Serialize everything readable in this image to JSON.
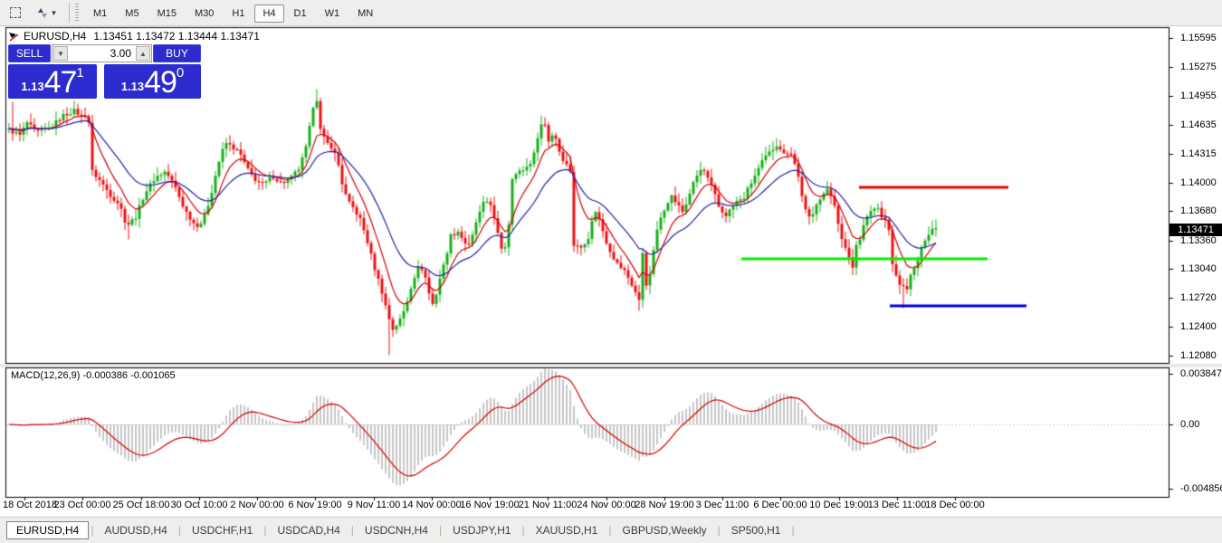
{
  "toolbar": {
    "timeframes": [
      "M1",
      "M5",
      "M15",
      "M30",
      "H1",
      "H4",
      "D1",
      "W1",
      "MN"
    ],
    "active_timeframe": "H4",
    "dropdown_caret": "▾"
  },
  "header": {
    "symbol": "EURUSD,H4",
    "ohlc": "1.13451 1.13472 1.13444 1.13471"
  },
  "trade_panel": {
    "sell_label": "SELL",
    "buy_label": "BUY",
    "volume": "3.00",
    "spin_down": "▼",
    "spin_up": "▲",
    "sell_price": {
      "prefix": "1.13",
      "big": "47",
      "sup": "1"
    },
    "buy_price": {
      "prefix": "1.13",
      "big": "49",
      "sup": "0"
    },
    "panel_color": "#2b2bd0"
  },
  "tabs": {
    "active": "EURUSD,H4",
    "items": [
      "EURUSD,H4",
      "AUDUSD,H4",
      "USDCHF,H1",
      "USDCAD,H4",
      "USDCNH,H4",
      "USDJPY,H1",
      "XAUUSD,H1",
      "GBPUSD,Weekly",
      "SP500,H1"
    ]
  },
  "chart_data": [
    {
      "type": "candlestick",
      "symbol": "EURUSD",
      "timeframe": "H4",
      "ohlc_display": {
        "open": "1.13451",
        "high": "1.13472",
        "low": "1.13444",
        "close": "1.13471"
      },
      "current_price": 1.13471,
      "current_price_label": "1.13471",
      "ylim": [
        1.12005,
        1.15705
      ],
      "y_axis_ticks": [
        {
          "price": 1.15595,
          "label": "1.15595"
        },
        {
          "price": 1.15275,
          "label": "1.15275"
        },
        {
          "price": 1.14955,
          "label": "1.14955"
        },
        {
          "price": 1.14635,
          "label": "1.14635"
        },
        {
          "price": 1.14315,
          "label": "1.14315"
        },
        {
          "price": 1.14,
          "label": "1.14000"
        },
        {
          "price": 1.1368,
          "label": "1.13680"
        },
        {
          "price": 1.1336,
          "label": "1.13360"
        },
        {
          "price": 1.1304,
          "label": "1.13040"
        },
        {
          "price": 1.1272,
          "label": "1.12720"
        },
        {
          "price": 1.124,
          "label": "1.12400"
        },
        {
          "price": 1.1208,
          "label": "1.12080"
        }
      ],
      "x_axis_labels": [
        "18 Oct 2018",
        "23 Oct 00:00",
        "25 Oct 18:00",
        "30 Oct 10:00",
        "2 Nov 00:00",
        "6 Nov 19:00",
        "9 Nov 11:00",
        "14 Nov 00:00",
        "16 Nov 19:00",
        "21 Nov 11:00",
        "24 Nov 00:00",
        "28 Nov 19:00",
        "3 Dec 11:00",
        "6 Dec 00:00",
        "10 Dec 19:00",
        "13 Dec 11:00",
        "18 Dec 00:00"
      ],
      "candle_count": 257,
      "colors": {
        "bull": "#18b018",
        "bear": "#ee1111",
        "ma_fast": "#d40000",
        "ma_slow": "#2323a8"
      },
      "moving_averages": [
        {
          "name": "fast-ma",
          "period": 8,
          "color": "#d40000"
        },
        {
          "name": "slow-ma",
          "period": 21,
          "color": "#2323a8"
        }
      ],
      "hlines": [
        {
          "name": "resistance-line",
          "color": "#e80000",
          "price": 1.13945,
          "x1": 949,
          "x2": 1114
        },
        {
          "name": "support-line",
          "color": "#00ee00",
          "price": 1.13155,
          "x1": 819,
          "x2": 1091
        },
        {
          "name": "lower-support-line",
          "color": "#0000dd",
          "price": 1.12635,
          "x1": 983,
          "x2": 1134
        }
      ],
      "price_path_anchors": [
        [
          10,
          1.1458
        ],
        [
          22,
          1.1452
        ],
        [
          30,
          1.1466
        ],
        [
          40,
          1.1455
        ],
        [
          55,
          1.146
        ],
        [
          70,
          1.1474
        ],
        [
          82,
          1.1479
        ],
        [
          92,
          1.1472
        ],
        [
          97,
          1.148
        ],
        [
          102,
          1.1412
        ],
        [
          112,
          1.14
        ],
        [
          122,
          1.1386
        ],
        [
          132,
          1.1376
        ],
        [
          140,
          1.1352
        ],
        [
          150,
          1.1362
        ],
        [
          160,
          1.1388
        ],
        [
          172,
          1.1406
        ],
        [
          183,
          1.1412
        ],
        [
          193,
          1.1396
        ],
        [
          204,
          1.137
        ],
        [
          216,
          1.1352
        ],
        [
          224,
          1.1356
        ],
        [
          232,
          1.1382
        ],
        [
          241,
          1.142
        ],
        [
          249,
          1.1444
        ],
        [
          257,
          1.1439
        ],
        [
          265,
          1.1432
        ],
        [
          273,
          1.1415
        ],
        [
          281,
          1.1404
        ],
        [
          291,
          1.1397
        ],
        [
          301,
          1.1407
        ],
        [
          311,
          1.1399
        ],
        [
          321,
          1.1404
        ],
        [
          331,
          1.1416
        ],
        [
          339,
          1.1441
        ],
        [
          346,
          1.1485
        ],
        [
          350,
          1.1492
        ],
        [
          354,
          1.1458
        ],
        [
          360,
          1.1444
        ],
        [
          367,
          1.1439
        ],
        [
          373,
          1.1424
        ],
        [
          378,
          1.1399
        ],
        [
          384,
          1.1379
        ],
        [
          391,
          1.1371
        ],
        [
          398,
          1.1359
        ],
        [
          405,
          1.1338
        ],
        [
          413,
          1.1308
        ],
        [
          421,
          1.1283
        ],
        [
          429,
          1.1252
        ],
        [
          434,
          1.1238
        ],
        [
          441,
          1.1246
        ],
        [
          448,
          1.1262
        ],
        [
          456,
          1.1292
        ],
        [
          464,
          1.1309
        ],
        [
          469,
          1.1299
        ],
        [
          475,
          1.1273
        ],
        [
          479,
          1.1263
        ],
        [
          485,
          1.1291
        ],
        [
          491,
          1.1311
        ],
        [
          498,
          1.1341
        ],
        [
          506,
          1.1346
        ],
        [
          513,
          1.1334
        ],
        [
          519,
          1.1329
        ],
        [
          526,
          1.1356
        ],
        [
          534,
          1.1376
        ],
        [
          541,
          1.1381
        ],
        [
          546,
          1.1359
        ],
        [
          551,
          1.1338
        ],
        [
          556,
          1.1321
        ],
        [
          561,
          1.1342
        ],
        [
          566,
          1.1406
        ],
        [
          573,
          1.1411
        ],
        [
          581,
          1.1416
        ],
        [
          589,
          1.1426
        ],
        [
          596,
          1.1461
        ],
        [
          601,
          1.1468
        ],
        [
          606,
          1.1446
        ],
        [
          612,
          1.1456
        ],
        [
          619,
          1.1431
        ],
        [
          626,
          1.1419
        ],
        [
          631,
          1.1411
        ],
        [
          634,
          1.1331
        ],
        [
          641,
          1.1327
        ],
        [
          651,
          1.1341
        ],
        [
          657,
          1.1371
        ],
        [
          663,
          1.1356
        ],
        [
          671,
          1.1331
        ],
        [
          681,
          1.1311
        ],
        [
          691,
          1.1301
        ],
        [
          701,
          1.1281
        ],
        [
          706,
          1.1269
        ],
        [
          711,
          1.1336
        ],
        [
          715,
          1.1272
        ],
        [
          721,
          1.1321
        ],
        [
          728,
          1.1356
        ],
        [
          734,
          1.1371
        ],
        [
          741,
          1.1386
        ],
        [
          748,
          1.1376
        ],
        [
          755,
          1.1366
        ],
        [
          761,
          1.1386
        ],
        [
          769,
          1.1406
        ],
        [
          776,
          1.1416
        ],
        [
          781,
          1.1406
        ],
        [
          788,
          1.1391
        ],
        [
          794,
          1.1373
        ],
        [
          801,
          1.1363
        ],
        [
          808,
          1.1371
        ],
        [
          814,
          1.1379
        ],
        [
          821,
          1.1381
        ],
        [
          828,
          1.1396
        ],
        [
          836,
          1.1411
        ],
        [
          844,
          1.1426
        ],
        [
          853,
          1.1436
        ],
        [
          859,
          1.1443
        ],
        [
          866,
          1.1431
        ],
        [
          873,
          1.1436
        ],
        [
          881,
          1.1411
        ],
        [
          889,
          1.1371
        ],
        [
          896,
          1.1356
        ],
        [
          901,
          1.1376
        ],
        [
          908,
          1.1386
        ],
        [
          914,
          1.1391
        ],
        [
          921,
          1.1381
        ],
        [
          926,
          1.1356
        ],
        [
          931,
          1.1331
        ],
        [
          937,
          1.1321
        ],
        [
          942,
          1.1306
        ],
        [
          946,
          1.1331
        ],
        [
          951,
          1.1341
        ],
        [
          956,
          1.1361
        ],
        [
          963,
          1.1369
        ],
        [
          969,
          1.1373
        ],
        [
          974,
          1.1361
        ],
        [
          981,
          1.1356
        ],
        [
          986,
          1.1311
        ],
        [
          991,
          1.1291
        ],
        [
          996,
          1.1286
        ],
        [
          1001,
          1.1281
        ],
        [
          1006,
          1.1296
        ],
        [
          1011,
          1.1306
        ],
        [
          1016,
          1.1319
        ],
        [
          1021,
          1.1336
        ],
        [
          1027,
          1.1346
        ],
        [
          1032,
          1.1351
        ],
        [
          1036,
          1.13471
        ]
      ],
      "spikes": [
        {
          "x": 14,
          "high": 1.1489
        },
        {
          "x": 80,
          "high": 1.149
        },
        {
          "x": 140,
          "low": 1.1337
        },
        {
          "x": 348,
          "high": 1.1503
        },
        {
          "x": 430,
          "low": 1.1209
        },
        {
          "x": 601,
          "high": 1.1472
        },
        {
          "x": 706,
          "low": 1.1258
        },
        {
          "x": 859,
          "high": 1.1449
        },
        {
          "x": 996,
          "low": 1.1261
        }
      ]
    },
    {
      "type": "macd",
      "label": "MACD(12,26,9)",
      "value_macd": "-0.000386",
      "value_signal": "-0.001065",
      "params": [
        12,
        26,
        9
      ],
      "ylim": [
        -0.005464,
        0.004235
      ],
      "y_axis_ticks": [
        {
          "v": 0.003847,
          "label": "0.003847"
        },
        {
          "v": 0,
          "label": "0.00"
        },
        {
          "v": -0.004856,
          "label": "-0.004856"
        }
      ],
      "hist_color": "#c6c6c6",
      "signal_color": "#d40000",
      "normalize": {
        "pos_peak": 0.0042,
        "neg_trough": -0.0046
      }
    }
  ]
}
